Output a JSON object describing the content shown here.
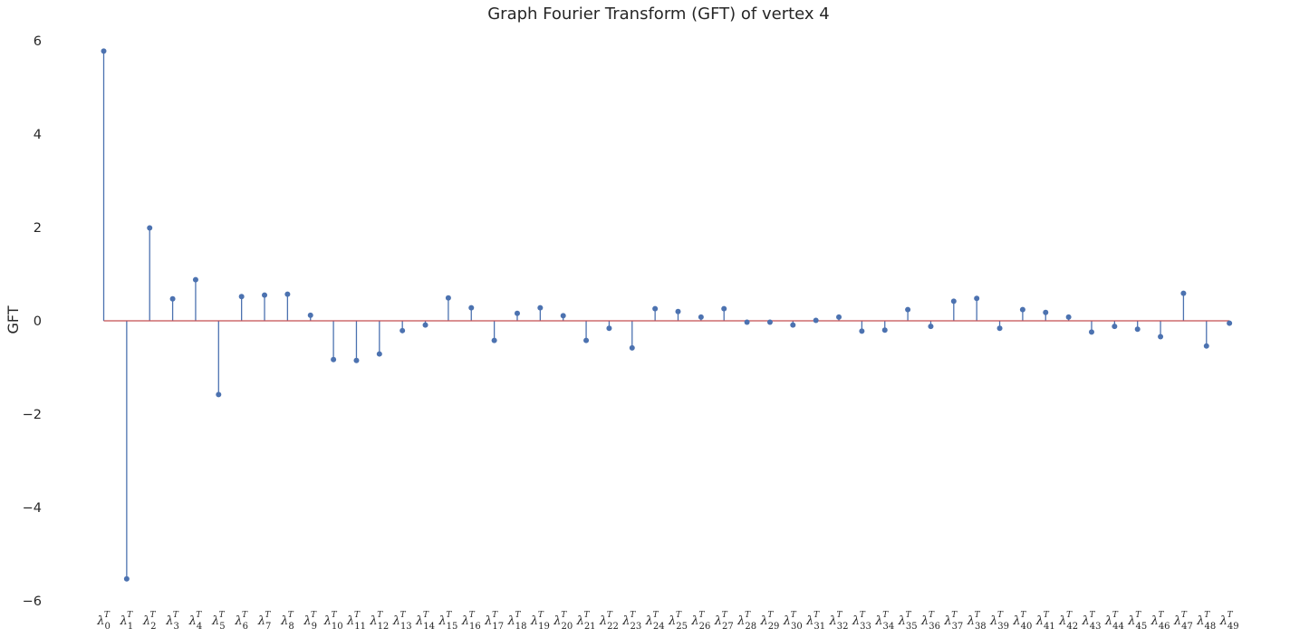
{
  "chart_data": {
    "type": "stem",
    "title": "Graph Fourier Transform (GFT) of vertex 4",
    "xlabel": "",
    "ylabel": "GFT",
    "ylim": [
      -6,
      6
    ],
    "yticks": [
      -6,
      -4,
      -2,
      0,
      2,
      4,
      6
    ],
    "ytick_labels": [
      "−6",
      "−4",
      "−2",
      "0",
      "2",
      "4",
      "6"
    ],
    "tick_symbol": "λ",
    "tick_superscript": "T",
    "categories": [
      "0",
      "1",
      "2",
      "3",
      "4",
      "5",
      "6",
      "7",
      "8",
      "9",
      "10",
      "11",
      "12",
      "13",
      "14",
      "15",
      "16",
      "17",
      "18",
      "19",
      "20",
      "21",
      "22",
      "23",
      "24",
      "25",
      "26",
      "27",
      "28",
      "29",
      "30",
      "31",
      "32",
      "33",
      "34",
      "35",
      "36",
      "37",
      "38",
      "39",
      "40",
      "41",
      "42",
      "43",
      "44",
      "45",
      "46",
      "47",
      "48",
      "49"
    ],
    "values": [
      5.78,
      -5.53,
      1.99,
      0.47,
      0.88,
      -1.58,
      0.52,
      0.55,
      0.57,
      0.12,
      -0.83,
      -0.85,
      -0.71,
      -0.21,
      -0.09,
      0.49,
      0.28,
      -0.42,
      0.16,
      0.28,
      0.11,
      -0.42,
      -0.16,
      -0.58,
      0.26,
      0.2,
      0.08,
      0.26,
      -0.03,
      -0.03,
      -0.09,
      0.01,
      0.08,
      -0.22,
      -0.2,
      0.24,
      -0.12,
      0.42,
      0.48,
      -0.16,
      0.24,
      0.18,
      0.08,
      -0.24,
      -0.12,
      -0.18,
      -0.34,
      0.59,
      -0.54,
      -0.05
    ],
    "stem_color": "#4c72b0",
    "baseline_color": "#c44e52",
    "grid": false
  }
}
